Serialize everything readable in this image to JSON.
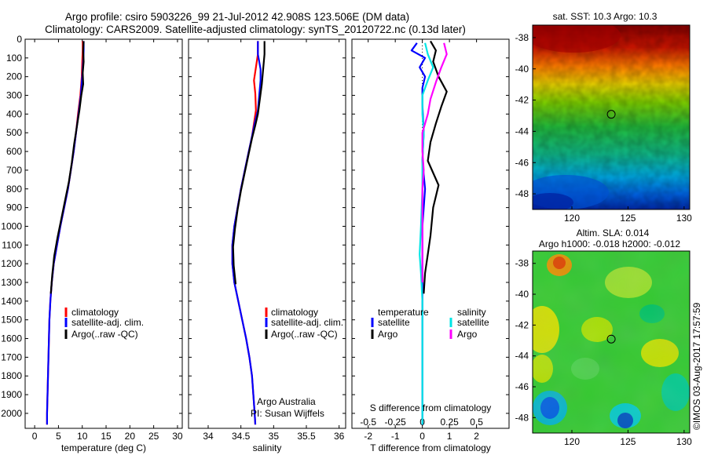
{
  "title": {
    "line1": "Argo profile: csiro 5903226_99 21-Jul-2012 42.908S 123.506E (DM data)",
    "line2": "Climatology: CARS2009. Satellite-adjusted climatology: synTS_20120722.nc (0.13d later)"
  },
  "colors": {
    "climatology": "#ff0000",
    "satellite": "#0000ff",
    "argo": "#000000",
    "sal_satellite": "#00e5e5",
    "sal_argo": "#ff00ff"
  },
  "chart_data": [
    {
      "type": "line",
      "name": "temperature-profile",
      "xlabel": "temperature (deg C)",
      "ylabel": "",
      "xlim": [
        -2,
        31
      ],
      "ylim": [
        2080,
        0
      ],
      "xticks": [
        0,
        5,
        10,
        15,
        20,
        25,
        30
      ],
      "yticks": [
        0,
        100,
        200,
        300,
        400,
        500,
        600,
        700,
        800,
        900,
        1000,
        1100,
        1200,
        1300,
        1400,
        1500,
        1600,
        1700,
        1800,
        1900,
        2000
      ],
      "legend": [
        "climatology",
        "satellite-adj. clim.",
        "Argo(..raw -QC)"
      ],
      "series": [
        {
          "name": "climatology",
          "color": "#ff0000",
          "points": [
            [
              10.1,
              10
            ],
            [
              10.1,
              60
            ],
            [
              10.0,
              120
            ],
            [
              9.9,
              200
            ],
            [
              9.6,
              300
            ],
            [
              9.1,
              400
            ],
            [
              8.7,
              500
            ],
            [
              8.2,
              600
            ],
            [
              7.6,
              700
            ],
            [
              7.0,
              800
            ],
            [
              6.2,
              900
            ],
            [
              5.4,
              1000
            ],
            [
              4.7,
              1100
            ],
            [
              4.0,
              1200
            ],
            [
              3.6,
              1300
            ],
            [
              3.3,
              1400
            ],
            [
              3.1,
              1500
            ],
            [
              3.0,
              1600
            ],
            [
              2.9,
              1700
            ],
            [
              2.8,
              1800
            ],
            [
              2.7,
              1900
            ],
            [
              2.6,
              2000
            ],
            [
              2.6,
              2060
            ]
          ]
        },
        {
          "name": "satellite",
          "color": "#0000ff",
          "points": [
            [
              10.3,
              10
            ],
            [
              10.3,
              60
            ],
            [
              10.2,
              120
            ],
            [
              10.0,
              200
            ],
            [
              9.7,
              300
            ],
            [
              9.2,
              400
            ],
            [
              8.7,
              500
            ],
            [
              8.2,
              600
            ],
            [
              7.6,
              700
            ],
            [
              7.0,
              800
            ],
            [
              6.2,
              900
            ],
            [
              5.4,
              1000
            ],
            [
              4.7,
              1100
            ],
            [
              4.0,
              1200
            ],
            [
              3.6,
              1300
            ],
            [
              3.3,
              1400
            ],
            [
              3.1,
              1500
            ],
            [
              3.0,
              1600
            ],
            [
              2.9,
              1700
            ],
            [
              2.8,
              1800
            ],
            [
              2.7,
              1900
            ],
            [
              2.6,
              2000
            ],
            [
              2.6,
              2060
            ]
          ]
        },
        {
          "name": "argo",
          "color": "#000000",
          "points": [
            [
              10.3,
              10
            ],
            [
              10.2,
              60
            ],
            [
              10.3,
              120
            ],
            [
              10.1,
              180
            ],
            [
              10.2,
              240
            ],
            [
              9.8,
              300
            ],
            [
              9.4,
              380
            ],
            [
              8.9,
              460
            ],
            [
              8.3,
              560
            ],
            [
              7.8,
              660
            ],
            [
              7.2,
              760
            ],
            [
              6.4,
              860
            ],
            [
              5.6,
              960
            ],
            [
              4.8,
              1060
            ],
            [
              4.1,
              1160
            ],
            [
              3.7,
              1260
            ],
            [
              3.4,
              1360
            ]
          ]
        }
      ]
    },
    {
      "type": "line",
      "name": "salinity-profile",
      "xlabel": "salinity",
      "xlim": [
        33.7,
        36.1
      ],
      "ylim": [
        2080,
        0
      ],
      "xticks": [
        34,
        34.5,
        35,
        35.5,
        36
      ],
      "legend": [
        "climatology",
        "satellite-adj. clim.",
        "Argo(..raw -QC)"
      ],
      "annotation": [
        "Argo Australia",
        "PI: Susan Wijffels"
      ],
      "series": [
        {
          "name": "climatology",
          "color": "#ff0000",
          "points": [
            [
              34.76,
              10
            ],
            [
              34.76,
              80
            ],
            [
              34.73,
              150
            ],
            [
              34.7,
              220
            ],
            [
              34.72,
              290
            ],
            [
              34.73,
              380
            ],
            [
              34.7,
              450
            ],
            [
              34.67,
              520
            ],
            [
              34.62,
              600
            ],
            [
              34.56,
              700
            ],
            [
              34.5,
              800
            ],
            [
              34.45,
              900
            ],
            [
              34.4,
              1000
            ],
            [
              34.37,
              1100
            ],
            [
              34.37,
              1200
            ],
            [
              34.4,
              1300
            ],
            [
              34.46,
              1400
            ],
            [
              34.52,
              1500
            ],
            [
              34.58,
              1600
            ],
            [
              34.63,
              1700
            ],
            [
              34.67,
              1800
            ],
            [
              34.69,
              1900
            ],
            [
              34.71,
              2000
            ],
            [
              34.72,
              2060
            ]
          ]
        },
        {
          "name": "satellite",
          "color": "#0000ff",
          "points": [
            [
              34.76,
              10
            ],
            [
              34.76,
              80
            ],
            [
              34.8,
              160
            ],
            [
              34.8,
              220
            ],
            [
              34.78,
              300
            ],
            [
              34.76,
              380
            ],
            [
              34.71,
              450
            ],
            [
              34.67,
              520
            ],
            [
              34.62,
              600
            ],
            [
              34.56,
              700
            ],
            [
              34.5,
              800
            ],
            [
              34.45,
              900
            ],
            [
              34.4,
              1000
            ],
            [
              34.37,
              1100
            ],
            [
              34.37,
              1200
            ],
            [
              34.4,
              1300
            ],
            [
              34.46,
              1400
            ],
            [
              34.52,
              1500
            ],
            [
              34.58,
              1600
            ],
            [
              34.63,
              1700
            ],
            [
              34.67,
              1800
            ],
            [
              34.69,
              1900
            ],
            [
              34.71,
              2000
            ],
            [
              34.72,
              2060
            ]
          ]
        },
        {
          "name": "argo",
          "color": "#000000",
          "points": [
            [
              34.86,
              10
            ],
            [
              34.86,
              80
            ],
            [
              34.84,
              160
            ],
            [
              34.82,
              240
            ],
            [
              34.79,
              320
            ],
            [
              34.76,
              400
            ],
            [
              34.72,
              460
            ],
            [
              34.67,
              530
            ],
            [
              34.62,
              610
            ],
            [
              34.56,
              710
            ],
            [
              34.5,
              810
            ],
            [
              34.45,
              910
            ],
            [
              34.41,
              1010
            ],
            [
              34.38,
              1110
            ],
            [
              34.39,
              1210
            ],
            [
              34.42,
              1310
            ]
          ]
        }
      ]
    },
    {
      "type": "line",
      "name": "difference-profile",
      "xlabel": "T difference from climatology",
      "xlabel_top": "S difference from climatology",
      "xlim": [
        -2.6,
        3.2
      ],
      "ylim": [
        2080,
        0
      ],
      "xticks": [
        -2,
        -1,
        0,
        1,
        2
      ],
      "xticks_s": [
        -0.5,
        -0.25,
        0,
        0.25,
        0.5
      ],
      "legend_temperature_title": "temperature",
      "legend_salinity_title": "salinity",
      "legend_satellite": "satellite",
      "legend_argo": "Argo",
      "series": [
        {
          "name": "T satellite",
          "color": "#0000ff",
          "points": [
            [
              -0.2,
              20
            ],
            [
              -0.4,
              60
            ],
            [
              0.1,
              100
            ],
            [
              -0.1,
              150
            ],
            [
              0.1,
              200
            ],
            [
              0.0,
              260
            ],
            [
              0.0,
              350
            ],
            [
              0.05,
              500
            ],
            [
              0.0,
              650
            ],
            [
              0.1,
              800
            ],
            [
              0.0,
              1000
            ],
            [
              0.0,
              1200
            ],
            [
              0.0,
              1400
            ],
            [
              0.0,
              1600
            ],
            [
              0.0,
              1800
            ],
            [
              0.0,
              2060
            ]
          ]
        },
        {
          "name": "T argo",
          "color": "#000000",
          "points": [
            [
              0.3,
              10
            ],
            [
              0.5,
              60
            ],
            [
              0.4,
              120
            ],
            [
              0.6,
              200
            ],
            [
              0.9,
              280
            ],
            [
              0.7,
              360
            ],
            [
              0.5,
              450
            ],
            [
              0.3,
              550
            ],
            [
              0.2,
              650
            ],
            [
              0.6,
              780
            ],
            [
              0.4,
              900
            ],
            [
              0.3,
              1050
            ],
            [
              0.2,
              1150
            ],
            [
              0.1,
              1250
            ],
            [
              0.05,
              1360
            ]
          ]
        },
        {
          "name": "S satellite",
          "color": "#00e5e5",
          "points": [
            [
              0.1,
              20
            ],
            [
              0.2,
              80
            ],
            [
              0.4,
              150
            ],
            [
              0.2,
              220
            ],
            [
              0.0,
              300
            ],
            [
              0.0,
              400
            ],
            [
              0.05,
              500
            ],
            [
              0.0,
              650
            ],
            [
              0.0,
              800
            ],
            [
              -0.05,
              1000
            ],
            [
              -0.1,
              1150
            ],
            [
              -0.05,
              1250
            ],
            [
              0.0,
              1400
            ],
            [
              0.0,
              1600
            ],
            [
              0.0,
              1800
            ],
            [
              0.0,
              2060
            ]
          ]
        },
        {
          "name": "S argo",
          "color": "#ff00ff",
          "points": [
            [
              0.8,
              20
            ],
            [
              0.9,
              80
            ],
            [
              0.7,
              150
            ],
            [
              0.5,
              230
            ],
            [
              0.3,
              320
            ],
            [
              0.2,
              400
            ],
            [
              0.0,
              500
            ],
            [
              0.0,
              600
            ],
            [
              0.05,
              700
            ],
            [
              0.0,
              800
            ],
            [
              0.0,
              900
            ],
            [
              0.0,
              1000
            ],
            [
              0.0,
              1100
            ],
            [
              0.0,
              1200
            ],
            [
              0.0,
              1300
            ]
          ]
        }
      ]
    },
    {
      "type": "heatmap",
      "name": "sst-map",
      "title": "sat. SST: 10.3 Argo: 10.3",
      "xlim": [
        116.5,
        130.5
      ],
      "ylim": [
        -49,
        -37.2
      ],
      "xticks": [
        120,
        125,
        130
      ],
      "yticks": [
        -38,
        -40,
        -42,
        -44,
        -46,
        -48
      ],
      "marker": [
        123.506,
        -42.908
      ]
    },
    {
      "type": "heatmap",
      "name": "sla-map",
      "title_line1": "Altim. SLA: 0.014",
      "title_line2": "Argo h1000: -0.018 h2000: -0.012",
      "xlim": [
        116.5,
        130.5
      ],
      "ylim": [
        -49,
        -37.2
      ],
      "xticks": [
        120,
        125,
        130
      ],
      "yticks": [
        -38,
        -40,
        -42,
        -44,
        -46,
        -48
      ],
      "marker": [
        123.506,
        -42.908
      ]
    }
  ],
  "credit": "©IMOS 03-Aug-2017 17:57:59"
}
